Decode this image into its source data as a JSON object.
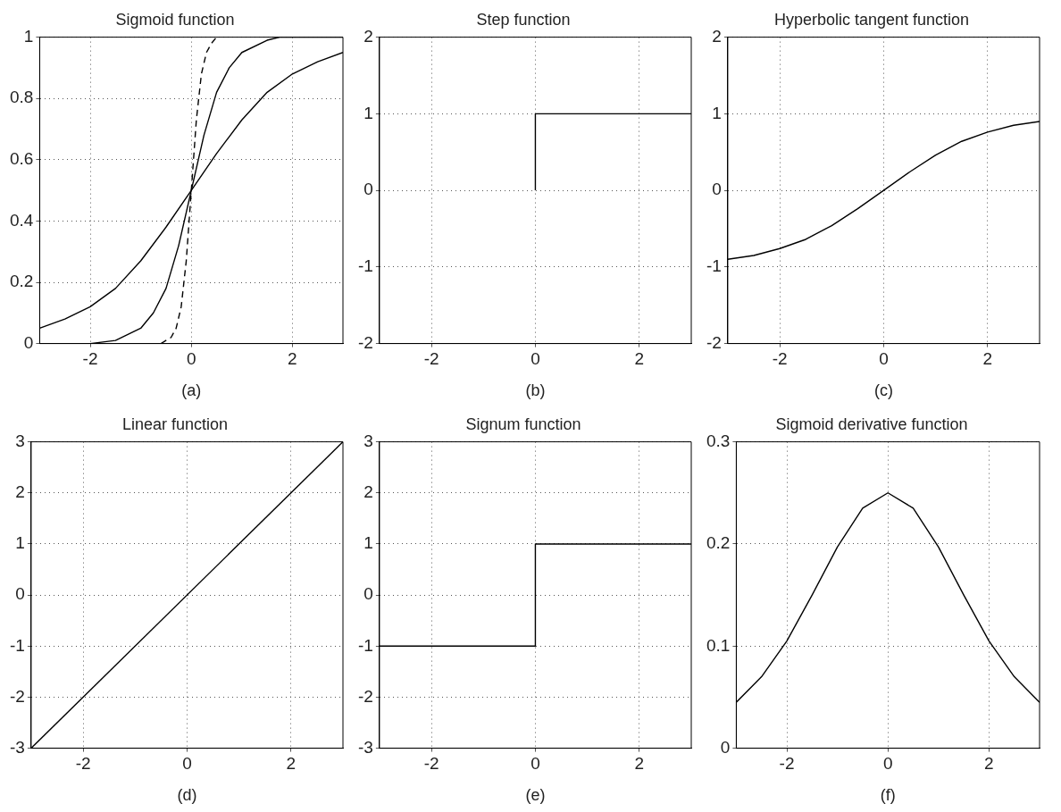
{
  "chart_data": [
    {
      "type": "line",
      "title": "Sigmoid function",
      "xlabel": "(a)",
      "xlim": [
        -3,
        3
      ],
      "xticks": [
        -2,
        0,
        2
      ],
      "ylim": [
        0,
        1
      ],
      "yticks": [
        0,
        0.2,
        0.4,
        0.6,
        0.8,
        1
      ],
      "grid": true,
      "series": [
        {
          "color": "#000000",
          "x": [
            -3,
            -2.5,
            -2,
            -1.5,
            -1,
            -0.5,
            0,
            0.5,
            1,
            1.5,
            2,
            2.5,
            3
          ],
          "values": [
            0.05,
            0.08,
            0.12,
            0.18,
            0.27,
            0.38,
            0.5,
            0.62,
            0.73,
            0.82,
            0.88,
            0.92,
            0.95
          ]
        },
        {
          "color": "#000000",
          "x": [
            -3,
            -2,
            -1.5,
            -1,
            -0.75,
            -0.5,
            -0.25,
            0,
            0.25,
            0.5,
            0.75,
            1,
            1.5,
            1.75,
            3
          ],
          "values": [
            0,
            0,
            0.01,
            0.05,
            0.1,
            0.18,
            0.32,
            0.5,
            0.68,
            0.82,
            0.9,
            0.95,
            0.99,
            1,
            1
          ]
        },
        {
          "color": "#000000",
          "line_style": "dashed",
          "x": [
            -0.6,
            -0.4,
            -0.3,
            -0.2,
            -0.1,
            0,
            0.1,
            0.2,
            0.3,
            0.4,
            0.5
          ],
          "values": [
            0,
            0.02,
            0.05,
            0.12,
            0.27,
            0.5,
            0.73,
            0.88,
            0.95,
            0.98,
            1
          ]
        }
      ]
    },
    {
      "type": "line",
      "title": "Step function",
      "xlabel": "(b)",
      "xlim": [
        -3,
        3
      ],
      "xticks": [
        -2,
        0,
        2
      ],
      "ylim": [
        -2,
        2
      ],
      "yticks": [
        -2,
        -1,
        0,
        1,
        2
      ],
      "grid": true,
      "series": [
        {
          "color": "#000000",
          "x": [
            0,
            0,
            3
          ],
          "values": [
            0,
            1,
            1
          ]
        }
      ]
    },
    {
      "type": "line",
      "title": "Hyperbolic tangent function",
      "xlabel": "(c)",
      "xlim": [
        -3,
        3
      ],
      "xticks": [
        -2,
        0,
        2
      ],
      "ylim": [
        -2,
        2
      ],
      "yticks": [
        -2,
        -1,
        0,
        1,
        2
      ],
      "grid": true,
      "series": [
        {
          "color": "#000000",
          "x": [
            -3,
            -2.5,
            -2,
            -1.5,
            -1,
            -0.5,
            0,
            0.5,
            1,
            1.5,
            2,
            2.5,
            3
          ],
          "values": [
            -0.9,
            -0.85,
            -0.76,
            -0.64,
            -0.46,
            -0.24,
            0,
            0.24,
            0.46,
            0.64,
            0.76,
            0.85,
            0.9
          ]
        }
      ]
    },
    {
      "type": "line",
      "title": "Linear function",
      "xlabel": "(d)",
      "xlim": [
        -3,
        3
      ],
      "xticks": [
        -2,
        0,
        2
      ],
      "ylim": [
        -3,
        3
      ],
      "yticks": [
        -3,
        -2,
        -1,
        0,
        1,
        2,
        3
      ],
      "grid": true,
      "series": [
        {
          "color": "#000000",
          "x": [
            -3,
            3
          ],
          "values": [
            -3,
            3
          ]
        }
      ]
    },
    {
      "type": "line",
      "title": "Signum function",
      "xlabel": "(e)",
      "xlim": [
        -3,
        3
      ],
      "xticks": [
        -2,
        0,
        2
      ],
      "ylim": [
        -3,
        3
      ],
      "yticks": [
        -3,
        -2,
        -1,
        0,
        1,
        2,
        3
      ],
      "grid": true,
      "series": [
        {
          "color": "#000000",
          "x": [
            -3,
            0,
            0,
            3
          ],
          "values": [
            -1,
            -1,
            1,
            1
          ]
        }
      ]
    },
    {
      "type": "line",
      "title": "Sigmoid derivative function",
      "xlabel": "(f)",
      "xlim": [
        -3,
        3
      ],
      "xticks": [
        -2,
        0,
        2
      ],
      "ylim": [
        0,
        0.3
      ],
      "yticks": [
        0,
        0.1,
        0.2,
        0.3
      ],
      "grid": true,
      "series": [
        {
          "color": "#000000",
          "x": [
            -3,
            -2.5,
            -2,
            -1.5,
            -1,
            -0.5,
            0,
            0.5,
            1,
            1.5,
            2,
            2.5,
            3
          ],
          "values": [
            0.045,
            0.07,
            0.105,
            0.15,
            0.197,
            0.235,
            0.25,
            0.235,
            0.197,
            0.15,
            0.105,
            0.07,
            0.045
          ]
        }
      ]
    }
  ]
}
